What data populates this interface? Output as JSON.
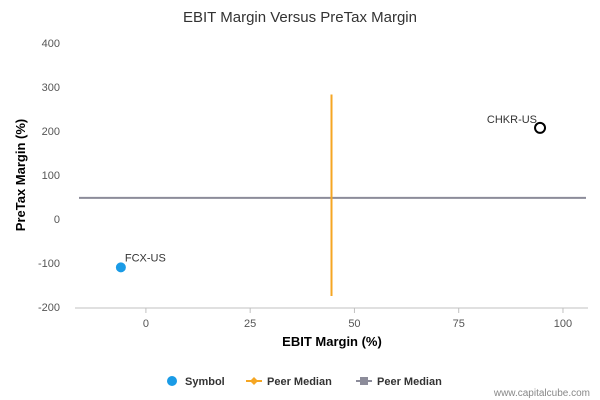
{
  "chart_data": {
    "type": "scatter",
    "title": "EBIT Margin Versus PreTax Margin",
    "xlabel": "EBIT Margin (%)",
    "ylabel": "PreTax Margin (%)",
    "xlim": [
      -17,
      106
    ],
    "ylim": [
      -200,
      400
    ],
    "xticks": [
      0,
      25,
      50,
      75,
      100
    ],
    "yticks": [
      -200,
      -100,
      0,
      100,
      200,
      300,
      400
    ],
    "points": [
      {
        "label": "FCX-US",
        "x": -6,
        "y": -110,
        "style": "filled",
        "color": "#1a9be6"
      },
      {
        "label": "CHKR-US",
        "x": 94.5,
        "y": 207,
        "style": "hollow",
        "color": "#000000"
      }
    ],
    "peer_median_x": {
      "value": 44.5,
      "y_range": [
        -175,
        283
      ],
      "color": "#f5a623"
    },
    "peer_median_y": {
      "value": 48,
      "color": "#8c8c9a"
    },
    "legend": [
      {
        "label": "Symbol",
        "marker": "circle",
        "color": "#1a9be6"
      },
      {
        "label": "Peer Median",
        "marker": "diamond",
        "color": "#f5a623"
      },
      {
        "label": "Peer Median",
        "marker": "square",
        "color": "#8c8c9a"
      }
    ],
    "legend_position": "bottom",
    "grid": false
  },
  "watermark": "www.capitalcube.com"
}
